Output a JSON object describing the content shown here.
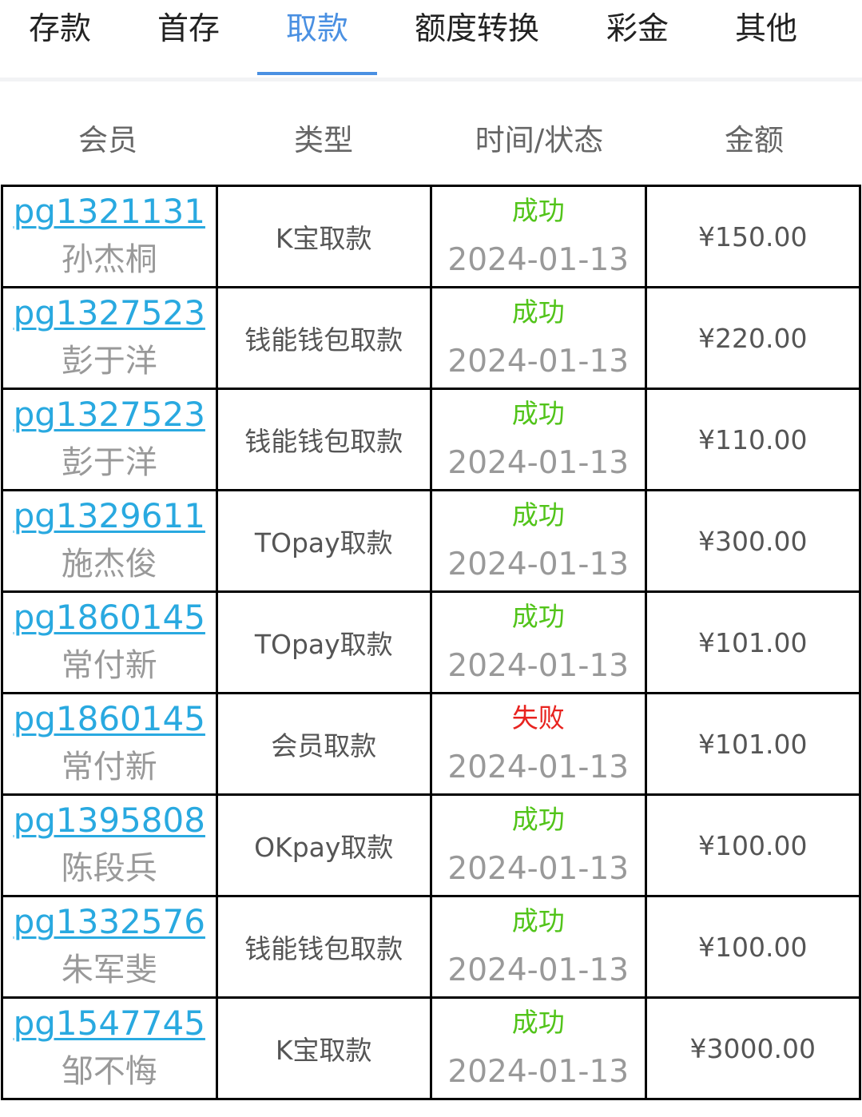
{
  "tabs": [
    {
      "label": "存款",
      "active": false
    },
    {
      "label": "首存",
      "active": false
    },
    {
      "label": "取款",
      "active": true
    },
    {
      "label": "额度转换",
      "active": false
    },
    {
      "label": "彩金",
      "active": false
    },
    {
      "label": "其他",
      "active": false
    }
  ],
  "table": {
    "headers": [
      "会员",
      "类型",
      "时间/状态",
      "金额"
    ],
    "rows": [
      {
        "member_id": "pg1321131",
        "member_name": "孙杰桐",
        "type": "K宝取款",
        "status": "成功",
        "date": "2024-01-13",
        "amount": "¥150.00"
      },
      {
        "member_id": "pg1327523",
        "member_name": "彭于洋",
        "type": "钱能钱包取款",
        "status": "成功",
        "date": "2024-01-13",
        "amount": "¥220.00"
      },
      {
        "member_id": "pg1327523",
        "member_name": "彭于洋",
        "type": "钱能钱包取款",
        "status": "成功",
        "date": "2024-01-13",
        "amount": "¥110.00"
      },
      {
        "member_id": "pg1329611",
        "member_name": "施杰俊",
        "type": "TOpay取款",
        "status": "成功",
        "date": "2024-01-13",
        "amount": "¥300.00"
      },
      {
        "member_id": "pg1860145",
        "member_name": "常付新",
        "type": "TOpay取款",
        "status": "成功",
        "date": "2024-01-13",
        "amount": "¥101.00"
      },
      {
        "member_id": "pg1860145",
        "member_name": "常付新",
        "type": "会员取款",
        "status": "失败",
        "date": "2024-01-13",
        "amount": "¥101.00"
      },
      {
        "member_id": "pg1395808",
        "member_name": "陈段兵",
        "type": "OKpay取款",
        "status": "成功",
        "date": "2024-01-13",
        "amount": "¥100.00"
      },
      {
        "member_id": "pg1332576",
        "member_name": "朱军斐",
        "type": "钱能钱包取款",
        "status": "成功",
        "date": "2024-01-13",
        "amount": "¥100.00"
      },
      {
        "member_id": "pg1547745",
        "member_name": "邹不悔",
        "type": "K宝取款",
        "status": "成功",
        "date": "2024-01-13",
        "amount": "¥3000.00"
      }
    ]
  },
  "colors": {
    "accent": "#4a90e2",
    "link": "#29a9e0",
    "success": "#52c41a",
    "fail": "#e8231f"
  }
}
